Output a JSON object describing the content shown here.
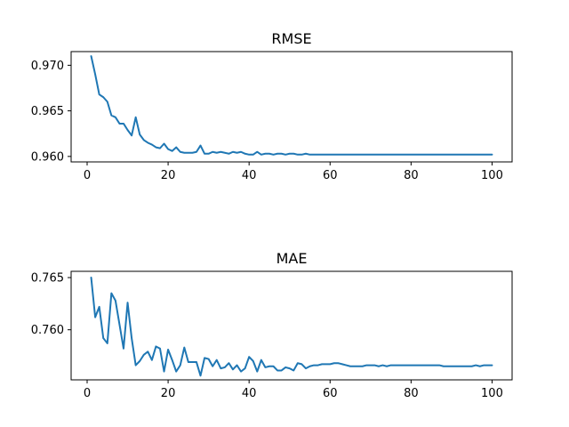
{
  "chart_data": [
    {
      "type": "line",
      "title": "RMSE",
      "xlabel": "",
      "ylabel": "",
      "xlim": [
        -3.95,
        104.95
      ],
      "ylim": [
        0.9594,
        0.9715
      ],
      "xticks": [
        0,
        20,
        40,
        60,
        80,
        100
      ],
      "xtick_labels": [
        "0",
        "20",
        "40",
        "60",
        "80",
        "100"
      ],
      "yticks": [
        0.96,
        0.965,
        0.97
      ],
      "ytick_labels": [
        "0.960",
        "0.965",
        "0.970"
      ],
      "grid": false,
      "series": [
        {
          "color": "#1f77b4",
          "x": [
            1,
            2,
            3,
            4,
            5,
            6,
            7,
            8,
            9,
            10,
            11,
            12,
            13,
            14,
            15,
            16,
            17,
            18,
            19,
            20,
            21,
            22,
            23,
            24,
            25,
            26,
            27,
            28,
            29,
            30,
            31,
            32,
            33,
            34,
            35,
            36,
            37,
            38,
            39,
            40,
            41,
            42,
            43,
            44,
            45,
            46,
            47,
            48,
            49,
            50,
            51,
            52,
            53,
            54,
            55,
            56,
            57,
            58,
            59,
            60,
            61,
            62,
            63,
            64,
            65,
            66,
            67,
            68,
            69,
            70,
            71,
            72,
            73,
            74,
            75,
            76,
            77,
            78,
            79,
            80,
            81,
            82,
            83,
            84,
            85,
            86,
            87,
            88,
            89,
            90,
            91,
            92,
            93,
            94,
            95,
            96,
            97,
            98,
            99,
            100
          ],
          "values": [
            0.971,
            0.969,
            0.9668,
            0.9665,
            0.966,
            0.9645,
            0.9643,
            0.9636,
            0.9636,
            0.9629,
            0.9623,
            0.9643,
            0.9624,
            0.9618,
            0.9615,
            0.9613,
            0.961,
            0.9609,
            0.9614,
            0.9608,
            0.9606,
            0.961,
            0.9605,
            0.9604,
            0.9604,
            0.9604,
            0.9605,
            0.9612,
            0.9603,
            0.9603,
            0.9605,
            0.9604,
            0.9605,
            0.9604,
            0.9603,
            0.9605,
            0.9604,
            0.9605,
            0.9603,
            0.9602,
            0.9602,
            0.9605,
            0.9602,
            0.9603,
            0.9603,
            0.9602,
            0.9603,
            0.9603,
            0.9602,
            0.9603,
            0.9603,
            0.9602,
            0.9602,
            0.9603,
            0.9602,
            0.9602,
            0.9602,
            0.9602,
            0.9602,
            0.9602,
            0.9602,
            0.9602,
            0.9602,
            0.9602,
            0.9602,
            0.9602,
            0.9602,
            0.9602,
            0.9602,
            0.9602,
            0.9602,
            0.9602,
            0.9602,
            0.9602,
            0.9602,
            0.9602,
            0.9602,
            0.9602,
            0.9602,
            0.9602,
            0.9602,
            0.9602,
            0.9602,
            0.9602,
            0.9602,
            0.9602,
            0.9602,
            0.9602,
            0.9602,
            0.9602,
            0.9602,
            0.9602,
            0.9602,
            0.9602,
            0.9602,
            0.9602,
            0.9602,
            0.9602,
            0.9602,
            0.9602
          ]
        }
      ]
    },
    {
      "type": "line",
      "title": "MAE",
      "xlabel": "",
      "ylabel": "",
      "xlim": [
        -3.95,
        104.95
      ],
      "ylim": [
        0.7552,
        0.7656
      ],
      "xticks": [
        0,
        20,
        40,
        60,
        80,
        100
      ],
      "xtick_labels": [
        "0",
        "20",
        "40",
        "60",
        "80",
        "100"
      ],
      "yticks": [
        0.76,
        0.765
      ],
      "ytick_labels": [
        "0.760",
        "0.765"
      ],
      "grid": false,
      "series": [
        {
          "color": "#1f77b4",
          "x": [
            1,
            2,
            3,
            4,
            5,
            6,
            7,
            8,
            9,
            10,
            11,
            12,
            13,
            14,
            15,
            16,
            17,
            18,
            19,
            20,
            21,
            22,
            23,
            24,
            25,
            26,
            27,
            28,
            29,
            30,
            31,
            32,
            33,
            34,
            35,
            36,
            37,
            38,
            39,
            40,
            41,
            42,
            43,
            44,
            45,
            46,
            47,
            48,
            49,
            50,
            51,
            52,
            53,
            54,
            55,
            56,
            57,
            58,
            59,
            60,
            61,
            62,
            63,
            64,
            65,
            66,
            67,
            68,
            69,
            70,
            71,
            72,
            73,
            74,
            75,
            76,
            77,
            78,
            79,
            80,
            81,
            82,
            83,
            84,
            85,
            86,
            87,
            88,
            89,
            90,
            91,
            92,
            93,
            94,
            95,
            96,
            97,
            98,
            99,
            100
          ],
          "values": [
            0.765,
            0.7612,
            0.7622,
            0.7592,
            0.7587,
            0.7635,
            0.7628,
            0.7605,
            0.7582,
            0.7626,
            0.7592,
            0.7566,
            0.757,
            0.7576,
            0.7579,
            0.7571,
            0.7584,
            0.7582,
            0.756,
            0.7581,
            0.7571,
            0.756,
            0.7566,
            0.7583,
            0.7569,
            0.7569,
            0.7569,
            0.7556,
            0.7573,
            0.7572,
            0.7565,
            0.7571,
            0.7563,
            0.7564,
            0.7568,
            0.7562,
            0.7566,
            0.756,
            0.7563,
            0.7574,
            0.757,
            0.756,
            0.7571,
            0.7564,
            0.7565,
            0.7565,
            0.7561,
            0.7561,
            0.7564,
            0.7563,
            0.7561,
            0.7568,
            0.7567,
            0.7563,
            0.7565,
            0.7566,
            0.7566,
            0.7567,
            0.7567,
            0.7567,
            0.7568,
            0.7568,
            0.7567,
            0.7566,
            0.7565,
            0.7565,
            0.7565,
            0.7565,
            0.7566,
            0.7566,
            0.7566,
            0.7565,
            0.7566,
            0.7565,
            0.7566,
            0.7566,
            0.7566,
            0.7566,
            0.7566,
            0.7566,
            0.7566,
            0.7566,
            0.7566,
            0.7566,
            0.7566,
            0.7566,
            0.7566,
            0.7565,
            0.7565,
            0.7565,
            0.7565,
            0.7565,
            0.7565,
            0.7565,
            0.7565,
            0.7566,
            0.7565,
            0.7566,
            0.7566,
            0.7566
          ]
        }
      ]
    }
  ]
}
